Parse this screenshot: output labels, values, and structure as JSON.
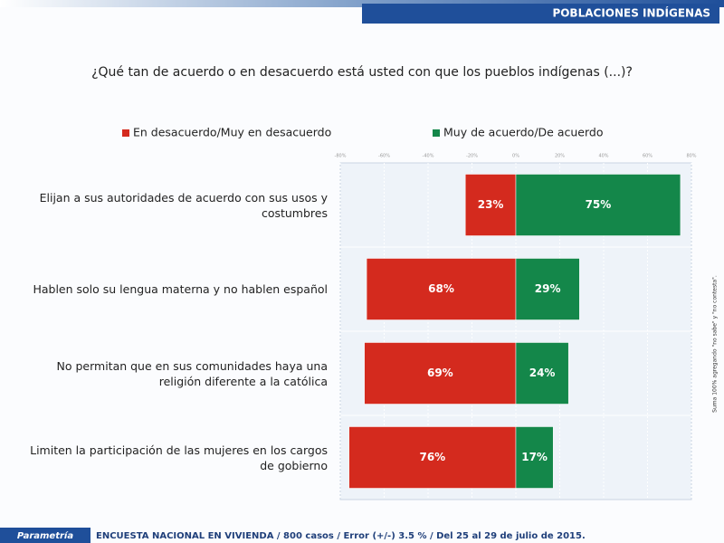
{
  "header": {
    "section": "POBLACIONES INDÍGENAS",
    "logo": "Parametría"
  },
  "chart_data": {
    "type": "diverging_bar",
    "title": "¿Qué tan de acuerdo o en desacuerdo está usted con que los pueblos indígenas (...)?",
    "categories": [
      "Elijan a sus autoridades de acuerdo con sus usos y costumbres",
      "Hablen solo su lengua materna y no hablen español",
      "No permitan que en sus comunidades haya una religión diferente a la católica",
      "Limiten la participación de las mujeres en los cargos de gobierno"
    ],
    "series": [
      {
        "name": "En desacuerdo/Muy en desacuerdo",
        "color": "#d42a1e",
        "values": [
          23,
          68,
          69,
          76
        ],
        "value_labels": [
          "23%",
          "68%",
          "69%",
          "76%"
        ]
      },
      {
        "name": "Muy de acuerdo/De acuerdo",
        "color": "#14874a",
        "values": [
          75,
          29,
          24,
          17
        ],
        "value_labels": [
          "75%",
          "29%",
          "24%",
          "17%"
        ]
      }
    ],
    "xlim": [
      -80,
      80
    ],
    "xticks": [
      {
        "value": -80,
        "label": "-80%"
      },
      {
        "value": -60,
        "label": "-60%"
      },
      {
        "value": -40,
        "label": "-40%"
      },
      {
        "value": -20,
        "label": "-20%"
      },
      {
        "value": 0,
        "label": "0%"
      },
      {
        "value": 20,
        "label": "20%"
      },
      {
        "value": 40,
        "label": "40%"
      },
      {
        "value": 60,
        "label": "60%"
      },
      {
        "value": 80,
        "label": "80%"
      }
    ],
    "grid": true,
    "note": "Suma 100% agregando \"no sabe\" y \"no contesta\"."
  },
  "footer": "ENCUESTA NACIONAL EN VIVIENDA / 800 casos / Error (+/-) 3.5 % / Del 25 al 29 de julio de 2015."
}
